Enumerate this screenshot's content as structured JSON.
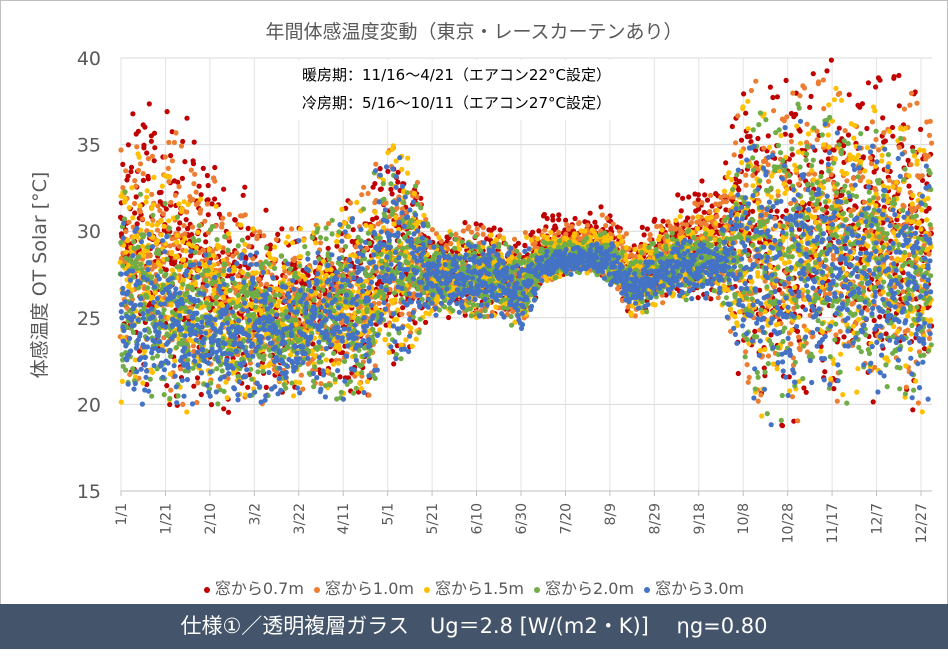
{
  "footer": {
    "text": "仕様①／透明複層ガラス　Ug＝2.8 [W/(m2・K)]　 ηg=0.80"
  },
  "chart_data": {
    "type": "scatter",
    "title": "年間体感温度変動（東京・レースカーテンあり）",
    "ylabel": "体感温度 OT  Solar [°C]",
    "xlabel": "",
    "ylim": [
      15,
      40
    ],
    "yticks": [
      "15",
      "20",
      "25",
      "30",
      "35",
      "40"
    ],
    "xlim_days": [
      0,
      365
    ],
    "xticks": [
      "1/1",
      "1/21",
      "2/10",
      "3/2",
      "3/22",
      "4/11",
      "5/1",
      "5/21",
      "6/10",
      "6/30",
      "7/20",
      "8/9",
      "8/29",
      "9/18",
      "10/8",
      "10/28",
      "11/17",
      "12/7",
      "12/27"
    ],
    "grid": true,
    "legend_position": "bottom",
    "annotations": [
      "暖房期：11/16～4/21（エアコン22°C設定）",
      "冷房期：5/16～10/11（エアコン27°C設定）"
    ],
    "bin_start_dates": [
      "1/1",
      "1/11",
      "1/21",
      "1/31",
      "2/10",
      "2/20",
      "3/2",
      "3/12",
      "3/22",
      "4/1",
      "4/11",
      "4/21",
      "5/1",
      "5/11",
      "5/21",
      "5/31",
      "6/10",
      "6/20",
      "6/30",
      "7/10",
      "7/20",
      "7/30",
      "8/9",
      "8/19",
      "8/29",
      "9/8",
      "9/18",
      "9/28",
      "10/8",
      "10/18",
      "10/28",
      "11/7",
      "11/17",
      "11/27",
      "12/7",
      "12/17",
      "12/27"
    ],
    "min_all": [
      19.5,
      19.5,
      19.5,
      19.5,
      19.5,
      19.5,
      20,
      20,
      20,
      20.5,
      20,
      19.5,
      22,
      23,
      25,
      25,
      25,
      25,
      24,
      27,
      27.5,
      27.5,
      27,
      25,
      25.5,
      26,
      26,
      26,
      20,
      19,
      18,
      20,
      20,
      20,
      20,
      19.5,
      19.5
    ],
    "series": [
      {
        "name": "窓から0.7m",
        "color": "#c00000",
        "max": [
          39,
          39,
          38.5,
          37,
          35,
          33,
          32.5,
          30.5,
          31,
          31,
          32,
          33,
          35.5,
          34.5,
          30.5,
          30.5,
          30.5,
          30.5,
          30,
          31,
          31,
          31.3,
          31.5,
          30,
          31,
          32,
          33,
          33.5,
          40,
          39.5,
          39.5,
          40,
          40,
          39.5,
          39.5,
          39.5,
          39
        ]
      },
      {
        "name": "窓から1.0m",
        "color": "#ed7d31",
        "max": [
          37,
          36.8,
          36.4,
          35,
          33.5,
          31.9,
          31.6,
          29.9,
          30.6,
          30.8,
          31.8,
          32.8,
          35.4,
          34.4,
          30.3,
          30.3,
          30.3,
          30.3,
          29.8,
          30.5,
          30.5,
          30.8,
          31,
          29.5,
          30.5,
          31.4,
          32.1,
          32.5,
          39,
          38.6,
          38.9,
          39.1,
          39.3,
          38.5,
          38.4,
          38.4,
          37.8
        ]
      },
      {
        "name": "窓から1.5m",
        "color": "#ffc000",
        "max": [
          35,
          34.5,
          34.3,
          33,
          32,
          30.8,
          30.8,
          29.3,
          30.3,
          30.5,
          31.5,
          32.5,
          35.3,
          34.3,
          30,
          30,
          30,
          30,
          29.5,
          30,
          30,
          30.3,
          30.5,
          29,
          30,
          30.8,
          31.3,
          31.5,
          38,
          37.8,
          38.3,
          38.3,
          38.5,
          37.5,
          37.3,
          37.3,
          36.5
        ]
      },
      {
        "name": "窓から2.0m",
        "color": "#70ad47",
        "max": [
          33,
          32.3,
          32.1,
          31,
          30.5,
          29.6,
          29.9,
          28.6,
          29.9,
          30.3,
          31.3,
          32.3,
          35.1,
          34.1,
          29.8,
          29.8,
          29.8,
          29.8,
          29.3,
          29.5,
          29.5,
          29.7,
          30,
          28.5,
          29.5,
          30.1,
          30.4,
          30.5,
          37,
          36.9,
          37.6,
          37.4,
          37.8,
          36.5,
          36.1,
          36.1,
          35.3
        ]
      },
      {
        "name": "窓から3.0m",
        "color": "#4472c4",
        "max": [
          31,
          30,
          30,
          29,
          29,
          28.5,
          29,
          28,
          29.5,
          30,
          31,
          32,
          35,
          34,
          29.5,
          29.5,
          29.5,
          29.5,
          29,
          29,
          29,
          29.2,
          29.5,
          28,
          29,
          29.5,
          29.5,
          29.5,
          36,
          36,
          37,
          36.5,
          37,
          35.5,
          35,
          35,
          34
        ]
      }
    ]
  }
}
